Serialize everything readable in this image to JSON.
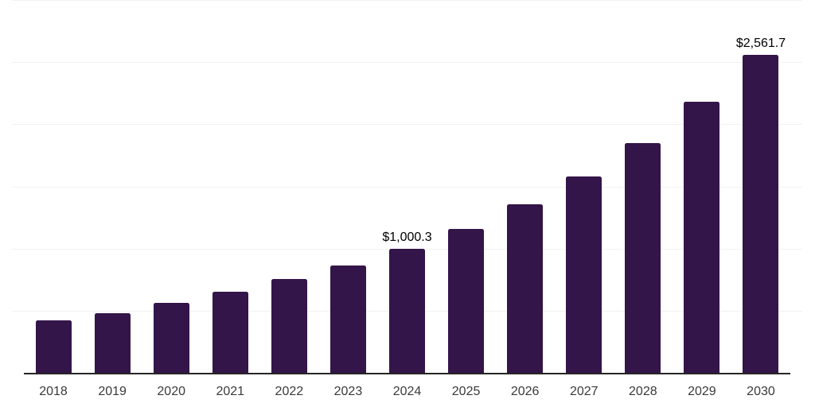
{
  "chart_data": {
    "type": "bar",
    "title": "",
    "xlabel": "",
    "ylabel": "",
    "categories": [
      "2018",
      "2019",
      "2020",
      "2021",
      "2022",
      "2023",
      "2024",
      "2025",
      "2026",
      "2027",
      "2028",
      "2029",
      "2030"
    ],
    "values": [
      420.0,
      482.5,
      564.9,
      652.9,
      752.9,
      866.0,
      1000.3,
      1158.2,
      1353.8,
      1580.7,
      1850.4,
      2181.0,
      2561.7
    ],
    "data_labels": [
      "",
      "",
      "",
      "",
      "",
      "",
      "$1,000.3",
      "",
      "",
      "",
      "",
      "",
      "$2,561.7"
    ],
    "ylim": [
      0,
      3000
    ],
    "ytick_interval": 500,
    "gridline_values": [
      500,
      1000,
      1500,
      2000,
      2500,
      3000
    ],
    "grid": "horizontal-only",
    "legend_position": "none",
    "y_axis_tick_labels_visible": false,
    "colors": {
      "bar": "#331549",
      "gridline": "#f2f2f2",
      "axis_line": "#262626",
      "year_label": "#3a3a3a",
      "value_label": "#000000",
      "background": "#ffffff"
    }
  }
}
